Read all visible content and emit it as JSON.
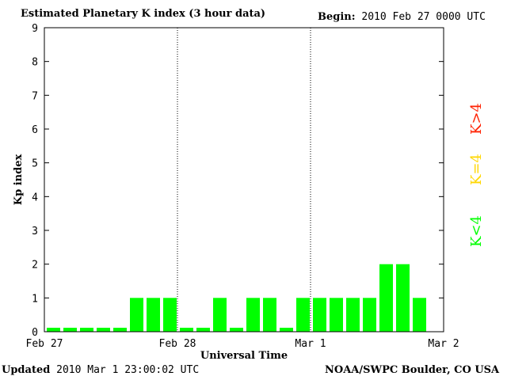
{
  "header": {
    "title": "Estimated Planetary K index (3 hour data)",
    "begin_label": "Begin:",
    "begin_value": "2010 Feb 27 0000 UTC"
  },
  "footer": {
    "updated_label": "Updated",
    "updated_value": "2010 Mar  1 23:00:02 UTC",
    "source": "NOAA/SWPC Boulder, CO USA"
  },
  "legend": {
    "low": {
      "label": "K<4",
      "color": "#00ff00"
    },
    "mid": {
      "label": "K=4",
      "color": "#ffd700"
    },
    "high": {
      "label": "K>4",
      "color": "#ff2000"
    }
  },
  "chart_data": {
    "type": "bar",
    "xlabel": "Universal Time",
    "ylabel": "Kp index",
    "ylim": [
      0,
      9
    ],
    "yticks": [
      0,
      1,
      2,
      3,
      4,
      5,
      6,
      7,
      8,
      9
    ],
    "xtick_labels": [
      "Feb 27",
      "Feb 28",
      "Mar 1",
      "Mar 2"
    ],
    "interval_hours": 3,
    "values": [
      0,
      0,
      0,
      0,
      0,
      1,
      1,
      1,
      0,
      0,
      1,
      0,
      1,
      1,
      0,
      1,
      1,
      1,
      1,
      1,
      2,
      2,
      1
    ],
    "bar_color": "#00ff00",
    "day_separators": "dotted"
  }
}
